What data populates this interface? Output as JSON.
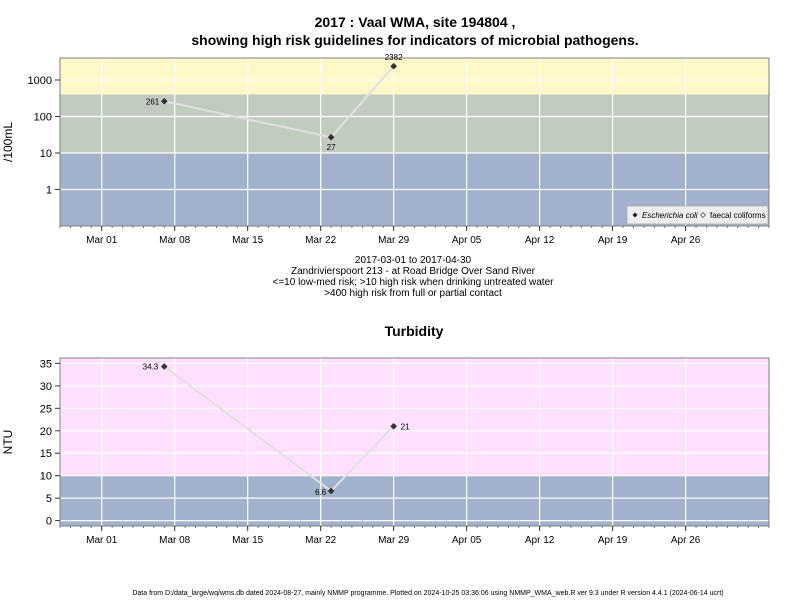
{
  "page": {
    "footer": "Data from D:/data_large/wq/wms.db dated 2024-08-27, mainly NMMP programme. Plotted on 2024-10-25 03:36:06 using NMMP_WMA_web.R ver 9.3 under R version 4.4.1 (2024-06-14 ucrt)"
  },
  "chart_data": [
    {
      "type": "line",
      "title_line1": "2017 : Vaal WMA, site 194804 ,",
      "title_line2": "showing high risk guidelines for indicators of microbial pathogens.",
      "ylabel": "/100mL",
      "yscale": "log",
      "ylim": [
        0.1,
        4000
      ],
      "y_ticks": [
        1,
        10,
        100,
        1000
      ],
      "y_tick_labels": [
        "1",
        "10",
        "100",
        "1000"
      ],
      "xlim": [
        "2017-02-25",
        "2017-05-04"
      ],
      "x_ticks": [
        "2017-03-01",
        "2017-03-08",
        "2017-03-15",
        "2017-03-22",
        "2017-03-29",
        "2017-04-05",
        "2017-04-12",
        "2017-04-19",
        "2017-04-26"
      ],
      "x_tick_labels": [
        "Mar 01",
        "Mar 08",
        "Mar 15",
        "Mar 22",
        "Mar 29",
        "Apr 05",
        "Apr 12",
        "Apr 19",
        "Apr 26"
      ],
      "grid": true,
      "bands": [
        {
          "from": 0.1,
          "to": 10,
          "color": "#a2b2cc"
        },
        {
          "from": 10,
          "to": 400,
          "color": "#c2cbbf"
        },
        {
          "from": 400,
          "to": 4000,
          "color": "#fff8c8"
        }
      ],
      "series": [
        {
          "name": "Escherichia coli",
          "x": [
            "2017-03-07",
            "2017-03-23",
            "2017-03-29"
          ],
          "values": [
            261,
            27,
            2382
          ],
          "labels": [
            "261",
            "27",
            "2382"
          ],
          "color": "#e0e0e0"
        }
      ],
      "legend": {
        "position": "bottom-right",
        "entries": [
          "Escherichia coli",
          "faecal coliforms"
        ]
      },
      "caption": [
        "2017-03-01 to 2017-04-30",
        "Zandrivierspoort 213 - at Road Bridge Over Sand River",
        "<=10 low-med risk; >10 high risk when drinking untreated water",
        ">400 high risk from full or partial contact"
      ]
    },
    {
      "type": "line",
      "title": "Turbidity",
      "ylabel": "NTU",
      "yscale": "linear",
      "ylim": [
        -1.2,
        36.2
      ],
      "y_ticks": [
        0,
        5,
        10,
        15,
        20,
        25,
        30,
        35
      ],
      "y_tick_labels": [
        "0",
        "5",
        "10",
        "15",
        "20",
        "25",
        "30",
        "35"
      ],
      "xlim": [
        "2017-02-25",
        "2017-05-04"
      ],
      "x_ticks": [
        "2017-03-01",
        "2017-03-08",
        "2017-03-15",
        "2017-03-22",
        "2017-03-29",
        "2017-04-05",
        "2017-04-12",
        "2017-04-19",
        "2017-04-26"
      ],
      "x_tick_labels": [
        "Mar 01",
        "Mar 08",
        "Mar 15",
        "Mar 22",
        "Mar 29",
        "Apr 05",
        "Apr 12",
        "Apr 19",
        "Apr 26"
      ],
      "grid": true,
      "bands": [
        {
          "from": -1.2,
          "to": 10,
          "color": "#a2b2cc"
        },
        {
          "from": 10,
          "to": 36.2,
          "color": "#ffe0ff"
        }
      ],
      "series": [
        {
          "x": [
            "2017-03-07",
            "2017-03-23",
            "2017-03-29"
          ],
          "values": [
            34.3,
            6.6,
            21
          ],
          "labels": [
            "34.3",
            "6.6",
            "21"
          ],
          "color": "#e0e0e0"
        }
      ]
    }
  ]
}
